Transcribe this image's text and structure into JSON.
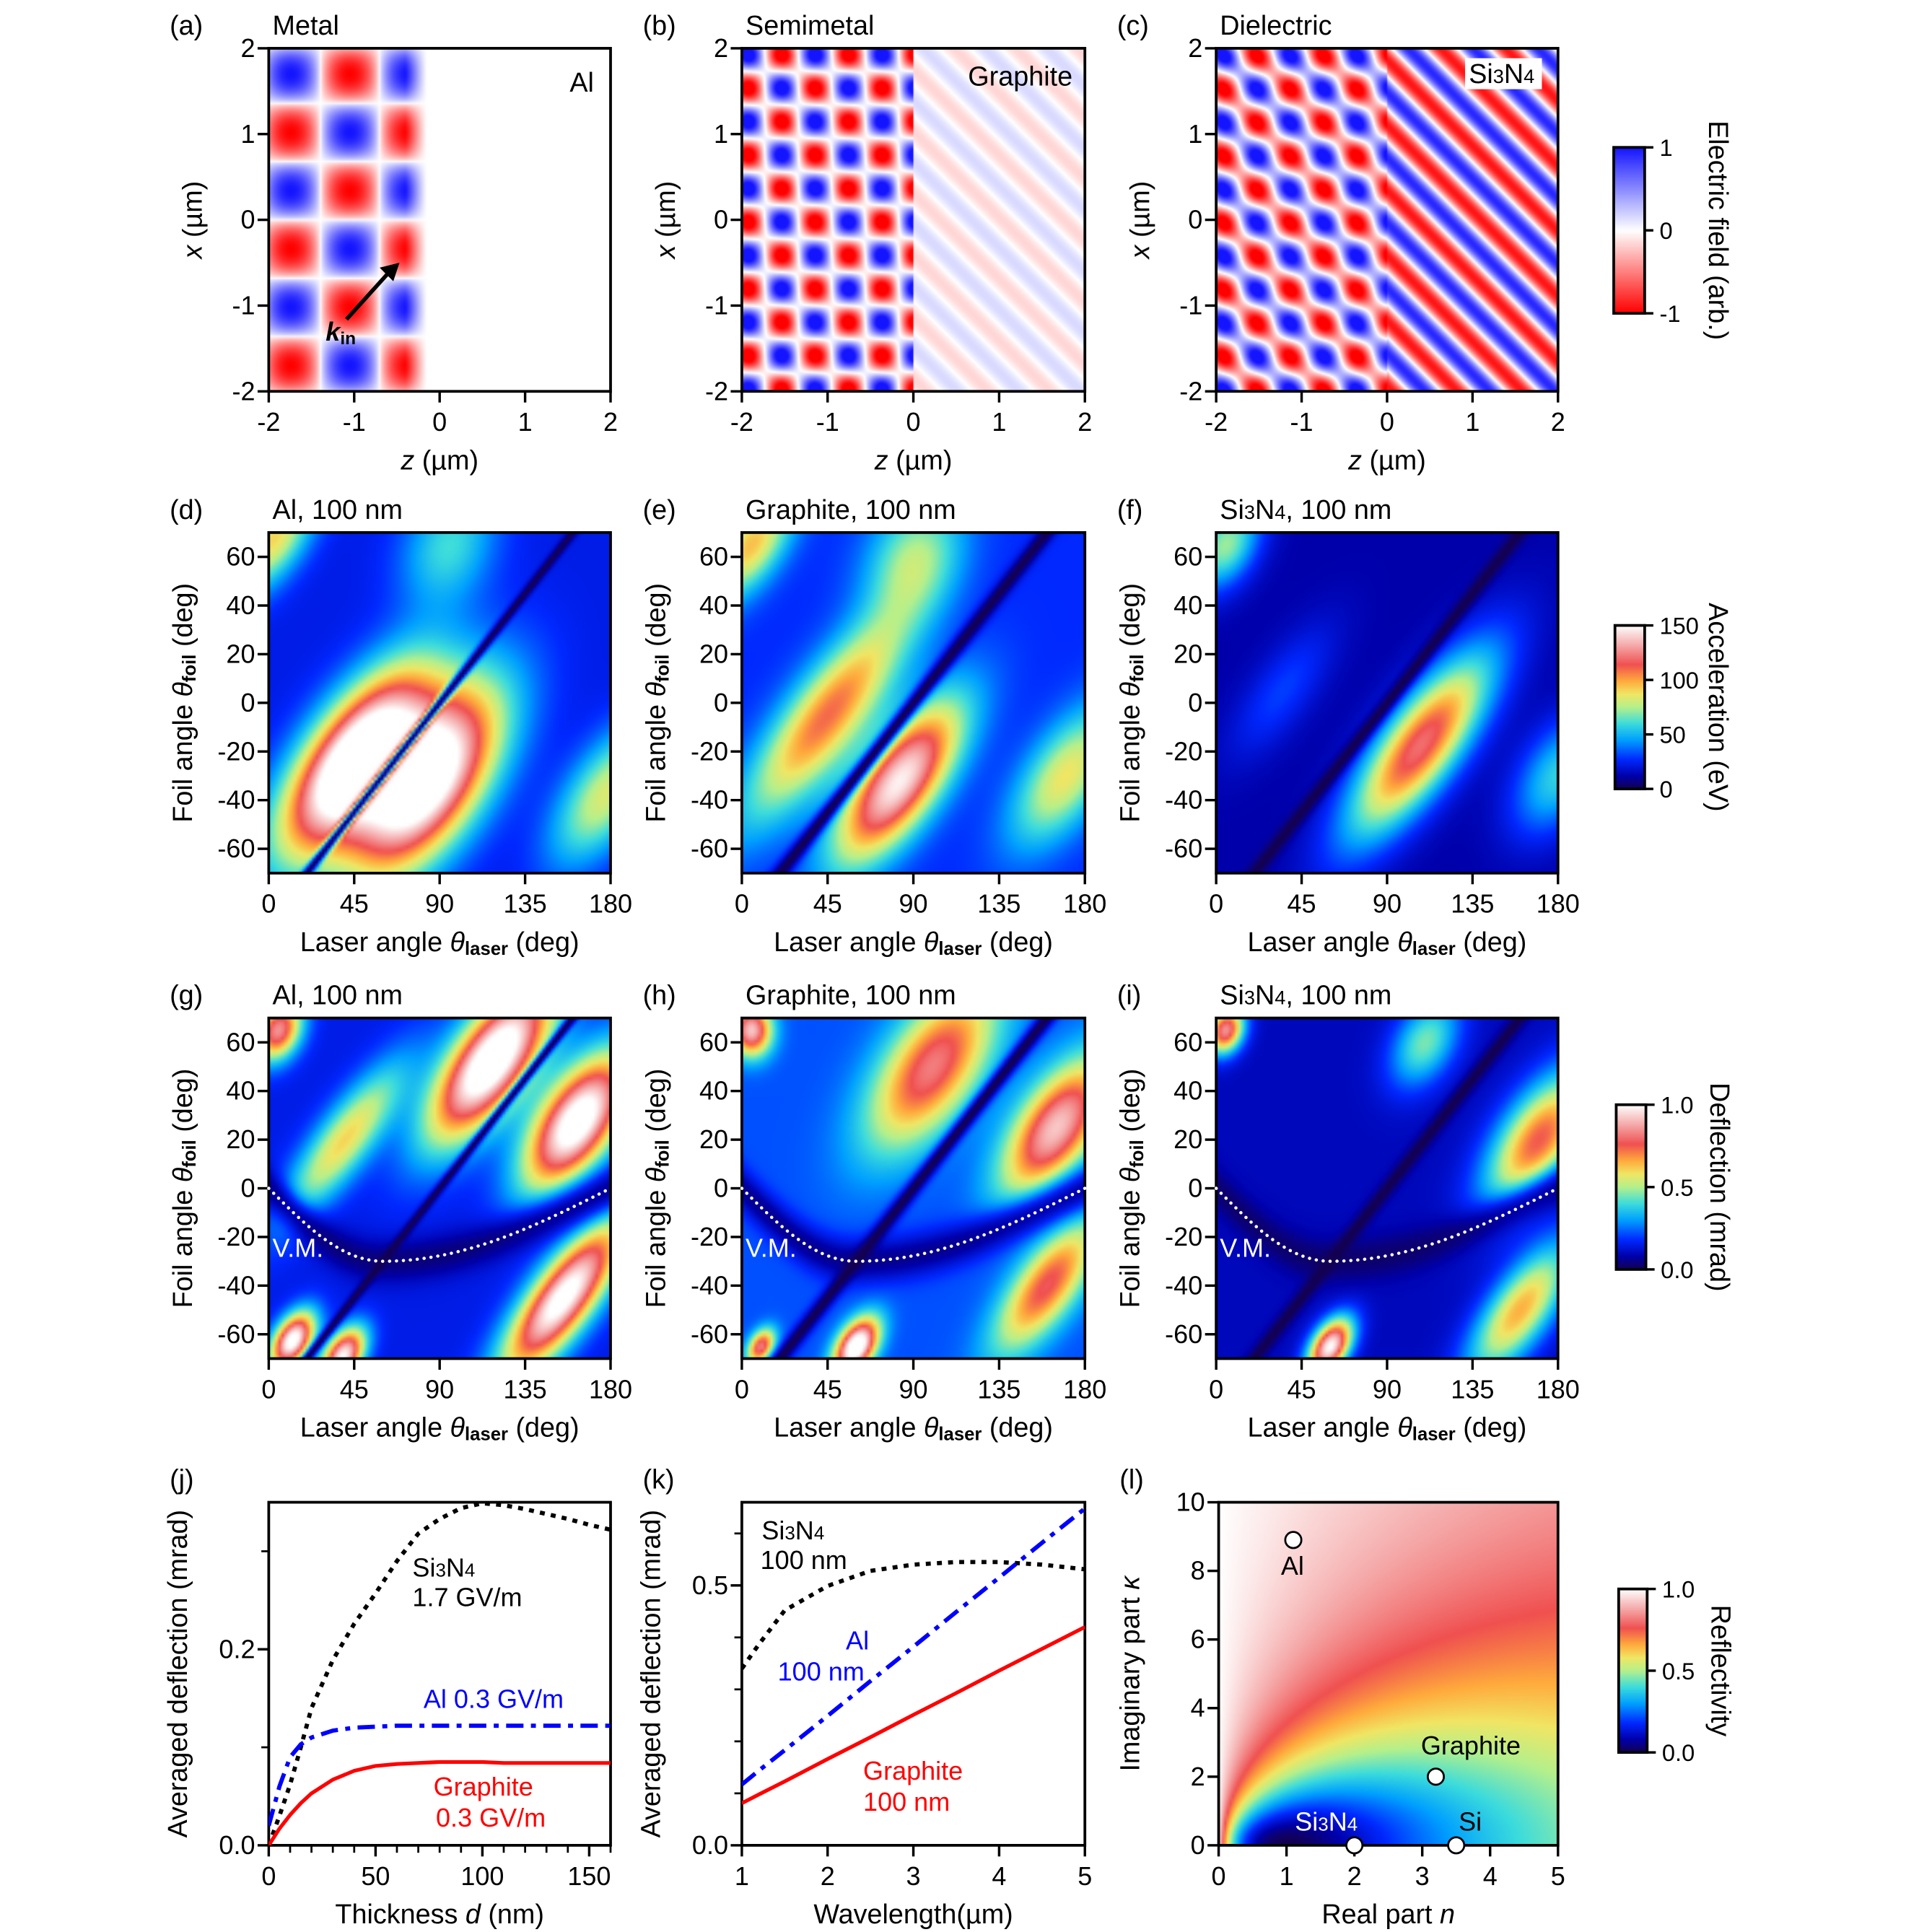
{
  "panels": [
    {
      "id": "a",
      "label": "(a)",
      "title": "Metal",
      "type": "heatmap",
      "quantity": "Electric field",
      "material": "Al",
      "xlabel": [
        [
          "z",
          "i"
        ],
        [
          " (µm)",
          ""
        ]
      ],
      "ylabel": [
        [
          "x",
          "i"
        ],
        [
          " (µm)",
          ""
        ]
      ],
      "xlim": [
        -2,
        2
      ],
      "ylim": [
        -2,
        2
      ],
      "xticks": [
        "-2",
        "-1",
        "0",
        "1",
        "2"
      ],
      "yticks": [
        "-2",
        "-1",
        "0",
        "1",
        "2"
      ],
      "annotations": [
        "Al"
      ],
      "arrow_label": [
        [
          "k",
          "bi"
        ],
        [
          "in",
          "sub"
        ]
      ],
      "colorbar": 0
    },
    {
      "id": "b",
      "label": "(b)",
      "title": "Semimetal",
      "type": "heatmap",
      "quantity": "Electric field",
      "material": "Graphite",
      "xlabel": [
        [
          "z",
          "i"
        ],
        [
          " (µm)",
          ""
        ]
      ],
      "ylabel": [
        [
          "x",
          "i"
        ],
        [
          " (µm)",
          ""
        ]
      ],
      "xlim": [
        -2,
        2
      ],
      "ylim": [
        -2,
        2
      ],
      "xticks": [
        "-2",
        "-1",
        "0",
        "1",
        "2"
      ],
      "yticks": [
        "-2",
        "-1",
        "0",
        "1",
        "2"
      ],
      "annotations": [
        "Graphite"
      ],
      "colorbar": 0
    },
    {
      "id": "c",
      "label": "(c)",
      "title": "Dielectric",
      "type": "heatmap",
      "quantity": "Electric field",
      "material": "Si3N4",
      "xlabel": [
        [
          "z",
          "i"
        ],
        [
          " (µm)",
          ""
        ]
      ],
      "ylabel": [
        [
          "x",
          "i"
        ],
        [
          " (µm)",
          ""
        ]
      ],
      "xlim": [
        -2,
        2
      ],
      "ylim": [
        -2,
        2
      ],
      "xticks": [
        "-2",
        "-1",
        "0",
        "1",
        "2"
      ],
      "yticks": [
        "-2",
        "-1",
        "0",
        "1",
        "2"
      ],
      "annotations": [
        "Si3N4"
      ],
      "colorbar": 0
    },
    {
      "id": "d",
      "label": "(d)",
      "title": "Al, 100 nm",
      "type": "heatmap",
      "quantity": "Acceleration",
      "xlabel": [
        [
          "Laser angle ",
          ""
        ],
        [
          "θ",
          "i"
        ],
        [
          "laser",
          "sub"
        ],
        [
          " (deg)",
          ""
        ]
      ],
      "ylabel": [
        [
          "Foil angle ",
          ""
        ],
        [
          "θ",
          "i"
        ],
        [
          "foil",
          "sub"
        ],
        [
          " (deg)",
          ""
        ]
      ],
      "xlim": [
        0,
        180
      ],
      "ylim": [
        -70,
        70
      ],
      "xticks": [
        "0",
        "45",
        "90",
        "135",
        "180"
      ],
      "yticks": [
        "-60",
        "-40",
        "-20",
        "0",
        "20",
        "40",
        "60"
      ],
      "colorbar": 1
    },
    {
      "id": "e",
      "label": "(e)",
      "title": "Graphite, 100 nm",
      "type": "heatmap",
      "quantity": "Acceleration",
      "xlabel": [
        [
          "Laser angle ",
          ""
        ],
        [
          "θ",
          "i"
        ],
        [
          "laser",
          "sub"
        ],
        [
          " (deg)",
          ""
        ]
      ],
      "ylabel": [
        [
          "Foil angle ",
          ""
        ],
        [
          "θ",
          "i"
        ],
        [
          "foil",
          "sub"
        ],
        [
          " (deg)",
          ""
        ]
      ],
      "xlim": [
        0,
        180
      ],
      "ylim": [
        -70,
        70
      ],
      "xticks": [
        "0",
        "45",
        "90",
        "135",
        "180"
      ],
      "yticks": [
        "-60",
        "-40",
        "-20",
        "0",
        "20",
        "40",
        "60"
      ],
      "colorbar": 1
    },
    {
      "id": "f",
      "label": "(f)",
      "title": "Si3N4, 100 nm",
      "type": "heatmap",
      "quantity": "Acceleration",
      "xlabel": [
        [
          "Laser angle ",
          ""
        ],
        [
          "θ",
          "i"
        ],
        [
          "laser",
          "sub"
        ],
        [
          " (deg)",
          ""
        ]
      ],
      "ylabel": [
        [
          "Foil angle ",
          ""
        ],
        [
          "θ",
          "i"
        ],
        [
          "foil",
          "sub"
        ],
        [
          " (deg)",
          ""
        ]
      ],
      "xlim": [
        0,
        180
      ],
      "ylim": [
        -70,
        70
      ],
      "xticks": [
        "0",
        "45",
        "90",
        "135",
        "180"
      ],
      "yticks": [
        "-60",
        "-40",
        "-20",
        "0",
        "20",
        "40",
        "60"
      ],
      "colorbar": 1
    },
    {
      "id": "g",
      "label": "(g)",
      "title": "Al, 100 nm",
      "type": "heatmap",
      "quantity": "Deflection",
      "xlabel": [
        [
          "Laser angle ",
          ""
        ],
        [
          "θ",
          "i"
        ],
        [
          "laser",
          "sub"
        ],
        [
          " (deg)",
          ""
        ]
      ],
      "ylabel": [
        [
          "Foil angle ",
          ""
        ],
        [
          "θ",
          "i"
        ],
        [
          "foil",
          "sub"
        ],
        [
          " (deg)",
          ""
        ]
      ],
      "xlim": [
        0,
        180
      ],
      "ylim": [
        -70,
        70
      ],
      "xticks": [
        "0",
        "45",
        "90",
        "135",
        "180"
      ],
      "yticks": [
        "-60",
        "-40",
        "-20",
        "0",
        "20",
        "40",
        "60"
      ],
      "annotations": [
        "V.M."
      ],
      "colorbar": 2
    },
    {
      "id": "h",
      "label": "(h)",
      "title": "Graphite, 100 nm",
      "type": "heatmap",
      "quantity": "Deflection",
      "xlabel": [
        [
          "Laser angle ",
          ""
        ],
        [
          "θ",
          "i"
        ],
        [
          "laser",
          "sub"
        ],
        [
          " (deg)",
          ""
        ]
      ],
      "ylabel": [
        [
          "Foil angle ",
          ""
        ],
        [
          "θ",
          "i"
        ],
        [
          "foil",
          "sub"
        ],
        [
          " (deg)",
          ""
        ]
      ],
      "xlim": [
        0,
        180
      ],
      "ylim": [
        -70,
        70
      ],
      "xticks": [
        "0",
        "45",
        "90",
        "135",
        "180"
      ],
      "yticks": [
        "-60",
        "-40",
        "-20",
        "0",
        "20",
        "40",
        "60"
      ],
      "annotations": [
        "V.M."
      ],
      "colorbar": 2
    },
    {
      "id": "i",
      "label": "(i)",
      "title": "Si3N4, 100 nm",
      "type": "heatmap",
      "quantity": "Deflection",
      "xlabel": [
        [
          "Laser angle ",
          ""
        ],
        [
          "θ",
          "i"
        ],
        [
          "laser",
          "sub"
        ],
        [
          " (deg)",
          ""
        ]
      ],
      "ylabel": [
        [
          "Foil angle ",
          ""
        ],
        [
          "θ",
          "i"
        ],
        [
          "foil",
          "sub"
        ],
        [
          " (deg)",
          ""
        ]
      ],
      "xlim": [
        0,
        180
      ],
      "ylim": [
        -70,
        70
      ],
      "xticks": [
        "0",
        "45",
        "90",
        "135",
        "180"
      ],
      "yticks": [
        "-60",
        "-40",
        "-20",
        "0",
        "20",
        "40",
        "60"
      ],
      "annotations": [
        "V.M."
      ],
      "colorbar": 2
    }
  ],
  "colorbars": [
    {
      "label": "Electric field (arb.)",
      "range": [
        -1,
        1
      ],
      "ticks": [
        1,
        0,
        -1
      ],
      "tick_labels": [
        "1",
        "0",
        "-1"
      ],
      "colormap": "red-white-blue",
      "colors": {
        "negative": "#ff0000",
        "zero": "#ffffff",
        "positive": "#0000ff"
      }
    },
    {
      "label": "Acceleration (eV)",
      "range": [
        0,
        150
      ],
      "ticks": [
        150,
        100,
        50,
        0
      ],
      "tick_labels": [
        "150",
        "100",
        "50",
        "0"
      ],
      "colormap": "rainbow-white"
    },
    {
      "label": "Deflection (mrad)",
      "range": [
        0,
        1
      ],
      "ticks": [
        1,
        0.5,
        0
      ],
      "tick_labels": [
        "1.0",
        "0.5",
        "0.0"
      ],
      "colormap": "rainbow-white"
    },
    {
      "label": "Reflectivity",
      "range": [
        0,
        1
      ],
      "ticks": [
        1,
        0.5,
        0
      ],
      "tick_labels": [
        "1.0",
        "0.5",
        "0.0"
      ],
      "colormap": "rainbow-white"
    }
  ],
  "chart_data": [
    {
      "panel": "j",
      "label": "(j)",
      "type": "line",
      "xlabel": [
        [
          "Thickness ",
          ""
        ],
        [
          "d",
          "i"
        ],
        [
          " (nm)",
          ""
        ]
      ],
      "ylabel": [
        [
          "Averaged deflection (mrad)",
          ""
        ]
      ],
      "xlim": [
        0,
        160
      ],
      "ylim": [
        0,
        0.35
      ],
      "xticks": [
        0,
        50,
        100,
        150
      ],
      "xtick_labels": [
        "0",
        "50",
        "100",
        "150"
      ],
      "yticks": [
        0,
        0.2
      ],
      "ytick_labels": [
        "0.0",
        "0.2"
      ],
      "grid": false,
      "x": [
        0,
        5,
        10,
        15,
        20,
        30,
        40,
        50,
        60,
        70,
        80,
        90,
        100,
        110,
        120,
        130,
        140,
        150,
        160
      ],
      "series": [
        {
          "name": "Si3N4",
          "color": "#000000",
          "style": "dotted",
          "label_lines": [
            "Si3N4",
            "1.7 GV/m"
          ],
          "values": [
            0,
            0.03,
            0.062,
            0.1,
            0.14,
            0.189,
            0.226,
            0.257,
            0.29,
            0.318,
            0.333,
            0.344,
            0.349,
            0.347,
            0.343,
            0.338,
            0.333,
            0.327,
            0.322
          ]
        },
        {
          "name": "Al",
          "color": "#0000ff",
          "style": "dashdot",
          "label_lines": [
            "Al  0.3 GV/m"
          ],
          "values": [
            0.02,
            0.06,
            0.09,
            0.103,
            0.11,
            0.117,
            0.12,
            0.121,
            0.122,
            0.122,
            0.122,
            0.122,
            0.122,
            0.122,
            0.122,
            0.122,
            0.122,
            0.122,
            0.122
          ]
        },
        {
          "name": "Graphite",
          "color": "#ff0000",
          "style": "solid",
          "label_lines": [
            "Graphite",
            "0.3 GV/m"
          ],
          "values": [
            0,
            0.017,
            0.031,
            0.043,
            0.053,
            0.067,
            0.076,
            0.081,
            0.083,
            0.084,
            0.085,
            0.085,
            0.085,
            0.084,
            0.084,
            0.084,
            0.084,
            0.084,
            0.084
          ]
        }
      ]
    },
    {
      "panel": "k",
      "label": "(k)",
      "type": "line",
      "xlabel": [
        [
          "Wavelength(µm)",
          ""
        ]
      ],
      "ylabel": [
        [
          "Averaged deflection (mrad)",
          ""
        ]
      ],
      "xlim": [
        1,
        5
      ],
      "ylim": [
        0,
        0.66
      ],
      "xticks": [
        1,
        2,
        3,
        4,
        5
      ],
      "xtick_labels": [
        "1",
        "2",
        "3",
        "4",
        "5"
      ],
      "yticks": [
        0,
        0.5
      ],
      "ytick_labels": [
        "0.0",
        "0.5"
      ],
      "grid": false,
      "x": [
        1,
        1.2,
        1.5,
        2,
        2.5,
        3,
        3.5,
        4,
        4.5,
        5
      ],
      "series": [
        {
          "name": "Si3N4",
          "color": "#000000",
          "style": "dotted",
          "label_lines": [
            "Si3N4",
            "100 nm"
          ],
          "values": [
            0.34,
            0.387,
            0.452,
            0.499,
            0.528,
            0.54,
            0.545,
            0.545,
            0.54,
            0.531
          ]
        },
        {
          "name": "Al",
          "color": "#0000ff",
          "style": "dashdot",
          "label_lines": [
            "Al",
            "100 nm"
          ],
          "values": [
            0.117,
            0.144,
            0.183,
            0.249,
            0.316,
            0.382,
            0.449,
            0.515,
            0.582,
            0.648
          ]
        },
        {
          "name": "Graphite",
          "color": "#ff0000",
          "style": "solid",
          "label_lines": [
            "Graphite",
            "100 nm"
          ],
          "values": [
            0.081,
            0.098,
            0.123,
            0.166,
            0.208,
            0.251,
            0.293,
            0.336,
            0.378,
            0.42
          ]
        }
      ]
    },
    {
      "panel": "l",
      "label": "(l)",
      "type": "heatmap",
      "quantity": "Reflectivity",
      "xlabel": [
        [
          "Real part ",
          ""
        ],
        [
          "n",
          "i"
        ]
      ],
      "ylabel": [
        [
          "Imaginary part ",
          ""
        ],
        [
          "κ",
          "i"
        ]
      ],
      "xlim": [
        0,
        5
      ],
      "ylim": [
        0,
        10
      ],
      "xticks": [
        0,
        1,
        2,
        3,
        4,
        5
      ],
      "xtick_labels": [
        "0",
        "1",
        "2",
        "3",
        "4",
        "5"
      ],
      "yticks": [
        0,
        2,
        4,
        6,
        8,
        10
      ],
      "ytick_labels": [
        "0",
        "2",
        "4",
        "6",
        "8",
        "10"
      ],
      "colorbar": 3,
      "points": [
        {
          "name": "Al",
          "n": 1.1,
          "kappa": 8.9
        },
        {
          "name": "Graphite",
          "n": 3.2,
          "kappa": 2.0
        },
        {
          "name": "Si3N4",
          "n": 2.0,
          "kappa": 0.0
        },
        {
          "name": "Si",
          "n": 3.5,
          "kappa": 0.0
        }
      ]
    }
  ]
}
